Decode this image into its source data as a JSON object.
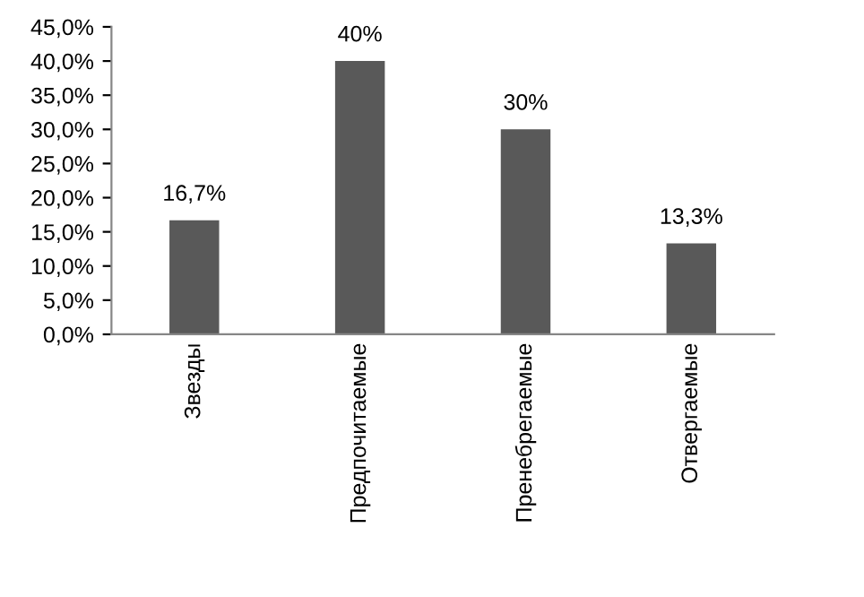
{
  "chart_data": {
    "type": "bar",
    "categories": [
      "Звезды",
      "Предпочитаемые",
      "Пренебрегаемые",
      "Отвергаемые"
    ],
    "values": [
      16.7,
      40,
      30,
      13.3
    ],
    "value_labels": [
      "16,7%",
      "40%",
      "30%",
      "13,3%"
    ],
    "color": "#595959",
    "ylim": [
      0,
      45
    ],
    "yticks": [
      {
        "value": 0,
        "label": "0,0%"
      },
      {
        "value": 5,
        "label": "5,0%"
      },
      {
        "value": 10,
        "label": "10,0%"
      },
      {
        "value": 15,
        "label": "15,0%"
      },
      {
        "value": 20,
        "label": "20,0%"
      },
      {
        "value": 25,
        "label": "25,0%"
      },
      {
        "value": 30,
        "label": "30,0%"
      },
      {
        "value": 35,
        "label": "35,0%"
      },
      {
        "value": 40,
        "label": "40,0%"
      },
      {
        "value": 45,
        "label": "45,0%"
      }
    ],
    "grid": false,
    "legend": false
  }
}
